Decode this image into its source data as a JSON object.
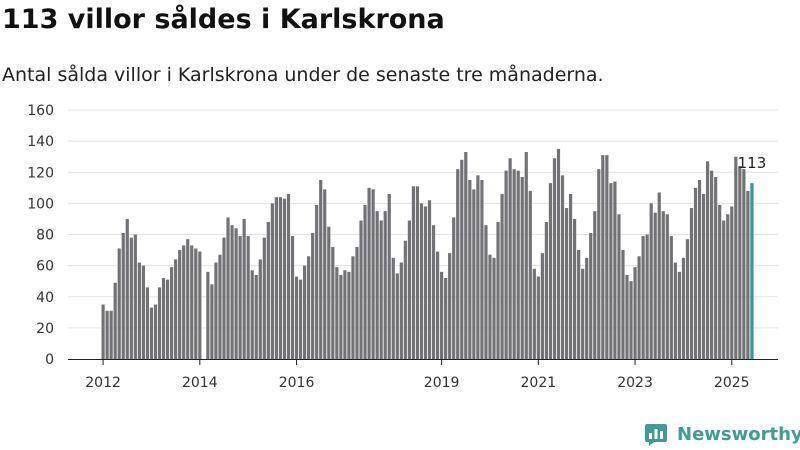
{
  "header": {
    "title": "113 villor såldes i Karlskrona",
    "subtitle": "Antal sålda villor i Karlskrona under de senaste tre månaderna."
  },
  "brand": {
    "name": "Newsworthy",
    "logo_icon": "newsworthy-logo-icon"
  },
  "colors": {
    "bar": "#727176",
    "highlight": "#2a9d90",
    "grid": "#e3e3e3",
    "axis": "#222222",
    "brand": "#3f9c96"
  },
  "chart_data": {
    "type": "bar",
    "start": "2012-01",
    "interval": "month",
    "year_ticks": [
      "2012",
      "2014",
      "2016",
      "2019",
      "2021",
      "2023",
      "2025"
    ],
    "y_ticks": [
      "0",
      "20",
      "40",
      "60",
      "80",
      "100",
      "120",
      "140",
      "160"
    ],
    "ylim": [
      0,
      160
    ],
    "grid": true,
    "values": [
      35,
      31,
      31,
      49,
      71,
      81,
      90,
      78,
      80,
      62,
      60,
      46,
      33,
      35,
      46,
      52,
      51,
      59,
      64,
      70,
      73,
      77,
      73,
      71,
      69,
      null,
      56,
      48,
      62,
      67,
      78,
      91,
      86,
      84,
      79,
      90,
      79,
      57,
      54,
      64,
      78,
      88,
      100,
      104,
      104,
      103,
      106,
      79,
      53,
      51,
      60,
      66,
      81,
      99,
      115,
      109,
      85,
      72,
      59,
      54,
      57,
      56,
      66,
      72,
      89,
      99,
      110,
      109,
      95,
      89,
      95,
      106,
      65,
      55,
      62,
      76,
      89,
      111,
      111,
      100,
      98,
      102,
      86,
      69,
      56,
      52,
      68,
      91,
      122,
      128,
      133,
      115,
      109,
      118,
      115,
      86,
      67,
      65,
      88,
      106,
      121,
      129,
      122,
      121,
      117,
      133,
      108,
      58,
      53,
      68,
      88,
      113,
      129,
      135,
      118,
      97,
      106,
      90,
      70,
      58,
      65,
      81,
      95,
      122,
      131,
      131,
      113,
      114,
      93,
      70,
      54,
      50,
      59,
      66,
      79,
      80,
      100,
      94,
      107,
      95,
      93,
      79,
      62,
      56,
      65,
      77,
      97,
      110,
      115,
      106,
      127,
      121,
      117,
      99,
      89,
      93,
      98,
      130,
      124,
      122,
      108,
      113
    ],
    "highlight_label": "113"
  }
}
